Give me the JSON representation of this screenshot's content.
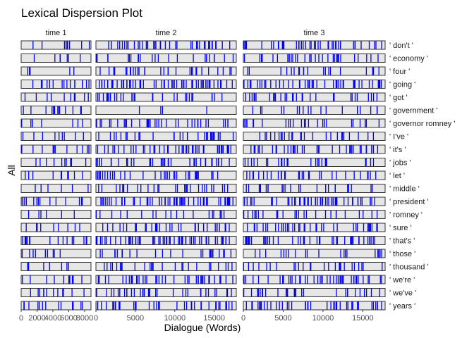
{
  "chart_data": {
    "type": "lexical-dispersion",
    "title": "Lexical Dispersion Plot",
    "xlabel": "Dialogue (Words)",
    "ylabel": "All",
    "panels": [
      {
        "name": "time 1",
        "xlim": [
          0,
          8800
        ],
        "ticks": [
          0,
          2000,
          4000,
          6000,
          8000
        ],
        "tick_labels": [
          "0",
          "2000",
          "4000",
          "6000",
          "8000"
        ]
      },
      {
        "name": "time 2",
        "xlim": [
          0,
          17800
        ],
        "ticks": [
          0,
          5000,
          10000,
          15000
        ],
        "tick_labels": [
          "0",
          "5000",
          "10000",
          "15000"
        ]
      },
      {
        "name": "time 3",
        "xlim": [
          0,
          17800
        ],
        "ticks": [
          0,
          5000,
          10000,
          15000
        ],
        "tick_labels": [
          "0",
          "5000",
          "10000",
          "15000"
        ]
      }
    ],
    "words": [
      {
        "label": " don't ",
        "counts": [
          9,
          42,
          44
        ]
      },
      {
        "label": " economy ",
        "counts": [
          7,
          24,
          34
        ]
      },
      {
        "label": " four ",
        "counts": [
          6,
          30,
          22
        ]
      },
      {
        "label": " going ",
        "counts": [
          16,
          58,
          50
        ]
      },
      {
        "label": " got ",
        "counts": [
          10,
          30,
          30
        ]
      },
      {
        "label": " government ",
        "counts": [
          14,
          4,
          20
        ]
      },
      {
        "label": " governor romney ",
        "counts": [
          7,
          36,
          24
        ]
      },
      {
        "label": " I've ",
        "counts": [
          9,
          30,
          26
        ]
      },
      {
        "label": " it's ",
        "counts": [
          12,
          44,
          36
        ]
      },
      {
        "label": " jobs ",
        "counts": [
          10,
          38,
          26
        ]
      },
      {
        "label": " let ",
        "counts": [
          10,
          36,
          30
        ]
      },
      {
        "label": " middle ",
        "counts": [
          6,
          30,
          24
        ]
      },
      {
        "label": " president ",
        "counts": [
          14,
          60,
          52
        ]
      },
      {
        "label": " romney ",
        "counts": [
          6,
          20,
          26
        ]
      },
      {
        "label": " sure ",
        "counts": [
          9,
          34,
          40
        ]
      },
      {
        "label": " that's ",
        "counts": [
          16,
          60,
          48
        ]
      },
      {
        "label": " those ",
        "counts": [
          9,
          24,
          20
        ]
      },
      {
        "label": " thousand ",
        "counts": [
          7,
          26,
          26
        ]
      },
      {
        "label": " we're ",
        "counts": [
          11,
          40,
          44
        ]
      },
      {
        "label": " we've ",
        "counts": [
          12,
          34,
          28
        ]
      },
      {
        "label": " years ",
        "counts": [
          13,
          36,
          42
        ]
      }
    ],
    "colors": {
      "mark": "#0000ff",
      "panel_bg": "#e6e6e6",
      "panel_border": "#333333"
    },
    "grid": false,
    "legend": "none"
  }
}
